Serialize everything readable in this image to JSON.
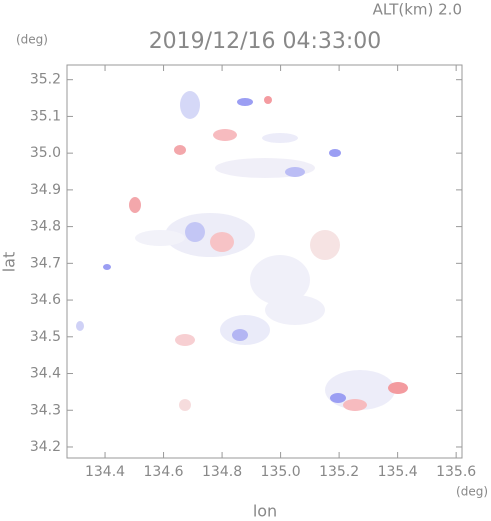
{
  "chart_data": {
    "type": "map",
    "title": "2019/12/16 04:33:00",
    "subtitle": "ALT(km) 2.0",
    "y_unit": "(deg)",
    "x_unit": "(deg)",
    "x_label": "lon",
    "y_label": "lat",
    "xlim": [
      134.27,
      135.62
    ],
    "ylim": [
      34.17,
      35.24
    ],
    "xticks": [
      134.4,
      134.6,
      134.8,
      {
        "value": 135,
        "label": "135.0"
      },
      135.2,
      135.4,
      135.6
    ],
    "yticks": [
      34.2,
      34.3,
      34.4,
      34.5,
      34.6,
      34.7,
      34.8,
      34.9,
      {
        "value": 35,
        "label": "35.0"
      },
      35.1,
      35.2
    ]
  }
}
